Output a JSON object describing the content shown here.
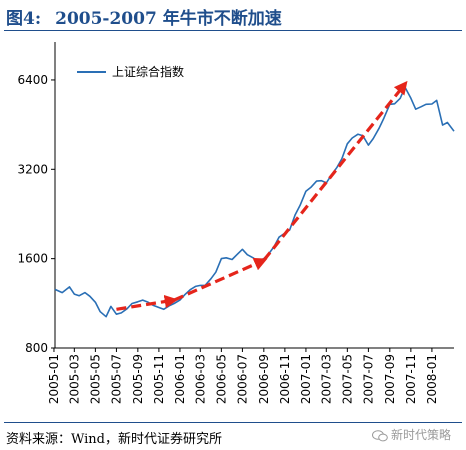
{
  "header": {
    "figure_label": "图4:",
    "title": "2005-2007 年牛市不断加速"
  },
  "footer": {
    "source": "资料来源：Wind，新时代证券研究所",
    "watermark": "新时代策略"
  },
  "colors": {
    "line": "#2a6fb5",
    "trend_arrow": "#e5251b",
    "rule": "#1f4e8c",
    "axis": "#000000"
  },
  "chart_data": {
    "type": "line",
    "title": "",
    "xlabel": "",
    "ylabel": "",
    "y_scale": "log",
    "ylim": [
      800,
      8200
    ],
    "yticks": [
      800,
      1600,
      3200,
      6400
    ],
    "ytick_labels": [
      "800",
      "1600",
      "3200",
      "6400"
    ],
    "xlim": [
      "2005-01-04",
      "2008-03-05"
    ],
    "xticks": [
      "2005-01",
      "2005-03",
      "2005-05",
      "2005-07",
      "2005-09",
      "2005-11",
      "2006-01",
      "2006-03",
      "2006-05",
      "2006-07",
      "2006-09",
      "2006-11",
      "2007-01",
      "2007-03",
      "2007-05",
      "2007-07",
      "2007-09",
      "2007-11",
      "2008-01"
    ],
    "grid": false,
    "legend": {
      "position": "top-left",
      "entries": [
        "上证综合指数"
      ]
    },
    "series": [
      {
        "name": "上证综合指数",
        "x": [
          "2005-01-04",
          "2005-01-25",
          "2005-02-15",
          "2005-03-01",
          "2005-03-15",
          "2005-04-01",
          "2005-04-15",
          "2005-05-01",
          "2005-05-15",
          "2005-06-01",
          "2005-06-15",
          "2005-07-01",
          "2005-07-15",
          "2005-08-01",
          "2005-08-15",
          "2005-09-01",
          "2005-09-15",
          "2005-10-01",
          "2005-10-15",
          "2005-11-01",
          "2005-11-15",
          "2005-12-01",
          "2005-12-15",
          "2006-01-01",
          "2006-01-15",
          "2006-02-01",
          "2006-02-15",
          "2006-03-01",
          "2006-03-15",
          "2006-04-01",
          "2006-04-15",
          "2006-05-01",
          "2006-05-15",
          "2006-06-01",
          "2006-06-15",
          "2006-07-01",
          "2006-07-15",
          "2006-08-01",
          "2006-08-15",
          "2006-09-01",
          "2006-09-15",
          "2006-10-01",
          "2006-10-15",
          "2006-11-01",
          "2006-11-15",
          "2006-12-01",
          "2006-12-15",
          "2007-01-01",
          "2007-01-15",
          "2007-02-01",
          "2007-02-15",
          "2007-03-01",
          "2007-03-15",
          "2007-04-01",
          "2007-04-15",
          "2007-05-01",
          "2007-05-15",
          "2007-06-01",
          "2007-06-15",
          "2007-07-01",
          "2007-07-15",
          "2007-08-01",
          "2007-08-15",
          "2007-09-01",
          "2007-09-15",
          "2007-10-01",
          "2007-10-15",
          "2007-11-01",
          "2007-11-15",
          "2007-12-01",
          "2007-12-15",
          "2008-01-01",
          "2008-01-15",
          "2008-02-01",
          "2008-02-15",
          "2008-03-05"
        ],
        "y": [
          1260,
          1230,
          1285,
          1215,
          1200,
          1230,
          1195,
          1140,
          1060,
          1020,
          1105,
          1040,
          1050,
          1085,
          1130,
          1145,
          1160,
          1140,
          1115,
          1095,
          1080,
          1110,
          1130,
          1160,
          1210,
          1260,
          1290,
          1300,
          1300,
          1370,
          1440,
          1600,
          1610,
          1590,
          1650,
          1720,
          1650,
          1610,
          1570,
          1600,
          1660,
          1760,
          1890,
          1950,
          2000,
          2250,
          2420,
          2700,
          2780,
          2920,
          2930,
          2880,
          3050,
          3250,
          3470,
          3900,
          4080,
          4200,
          4150,
          3860,
          4060,
          4400,
          4760,
          5300,
          5320,
          5550,
          6050,
          5550,
          5100,
          5200,
          5300,
          5310,
          5460,
          4510,
          4600,
          4300
        ]
      }
    ],
    "annotations": {
      "trend_arrows": [
        {
          "from": [
            "2005-07-01",
            1080
          ],
          "to": [
            "2005-12-15",
            1160
          ]
        },
        {
          "from": [
            "2005-12-15",
            1160
          ],
          "to": [
            "2006-09-01",
            1580
          ]
        },
        {
          "from": [
            "2006-09-01",
            1580
          ],
          "to": [
            "2007-10-15",
            6200
          ]
        }
      ]
    }
  }
}
